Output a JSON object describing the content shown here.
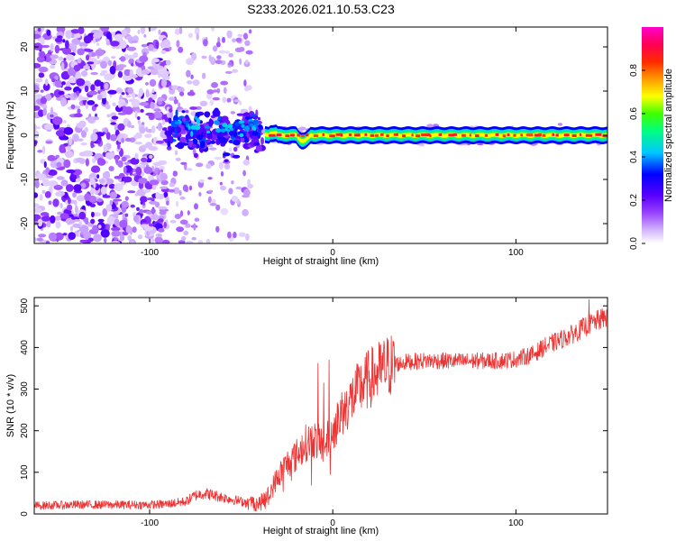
{
  "title": "S233.2026.021.10.53.C23",
  "chart_data": [
    {
      "type": "heatmap",
      "name": "spectrogram",
      "xlabel": "Height of straight line (km)",
      "ylabel": "Frequency (Hz)",
      "xlim": [
        -163,
        150
      ],
      "ylim": [
        -24.5,
        24.5
      ],
      "xticks": [
        -100,
        0,
        100
      ],
      "yticks": [
        -20,
        -10,
        0,
        10,
        20
      ],
      "colorbar": {
        "label": "Normalized spectral amplitude",
        "range": [
          0,
          1
        ],
        "ticks": [
          0.0,
          0.2,
          0.4,
          0.6,
          0.8
        ],
        "colormap": "rainbow (white-violet-purple-blue-cyan-green-yellow-orange-red-magenta)"
      },
      "regions": [
        {
          "description": "diffuse broadband noise",
          "x_range": [
            -163,
            -90
          ],
          "amplitude": "low (0.05-0.2)",
          "frequency_spread_hz": [
            -24.5,
            24.5
          ]
        },
        {
          "description": "sparser noise",
          "x_range": [
            -90,
            -50
          ],
          "amplitude": "low (0.05-0.15)",
          "frequency_spread_hz": [
            -24.5,
            24.5
          ]
        },
        {
          "description": "transitional scattered blobs",
          "x_range": [
            -90,
            -38
          ],
          "amplitude": "0.2-0.4",
          "frequency_spread_hz": [
            -7,
            8
          ]
        },
        {
          "description": "coherent tone near 0 Hz",
          "x_range": [
            -37,
            150
          ],
          "amplitude": "high (0.7-0.9)",
          "center_hz": 0,
          "width_hz": 2
        }
      ]
    },
    {
      "type": "line",
      "name": "snr",
      "xlabel": "Height of straight line (km)",
      "ylabel": "SNR (10 * v/v)",
      "xlim": [
        -163,
        150
      ],
      "ylim": [
        0,
        520
      ],
      "xticks": [
        -100,
        0,
        100
      ],
      "yticks": [
        0,
        100,
        200,
        300,
        400,
        500
      ],
      "color": "#ee3333",
      "x": [
        -163,
        -140,
        -120,
        -100,
        -90,
        -80,
        -75,
        -70,
        -60,
        -50,
        -40,
        -35,
        -30,
        -25,
        -20,
        -15,
        -10,
        -5,
        0,
        5,
        10,
        15,
        20,
        25,
        30,
        40,
        50,
        60,
        70,
        80,
        90,
        100,
        105,
        110,
        115,
        120,
        130,
        140,
        150
      ],
      "values": [
        20,
        22,
        22,
        22,
        24,
        30,
        45,
        50,
        40,
        30,
        25,
        45,
        90,
        120,
        140,
        170,
        180,
        160,
        200,
        240,
        275,
        305,
        325,
        340,
        355,
        365,
        368,
        368,
        367,
        368,
        368,
        372,
        378,
        385,
        400,
        410,
        430,
        455,
        475
      ],
      "spikes": [
        {
          "x": -27,
          "y": 355
        },
        {
          "x": -8,
          "y": 362
        },
        {
          "x": -5,
          "y": 315
        },
        {
          "x": -2,
          "y": 370
        },
        {
          "x": 140,
          "y": 515
        }
      ]
    }
  ]
}
